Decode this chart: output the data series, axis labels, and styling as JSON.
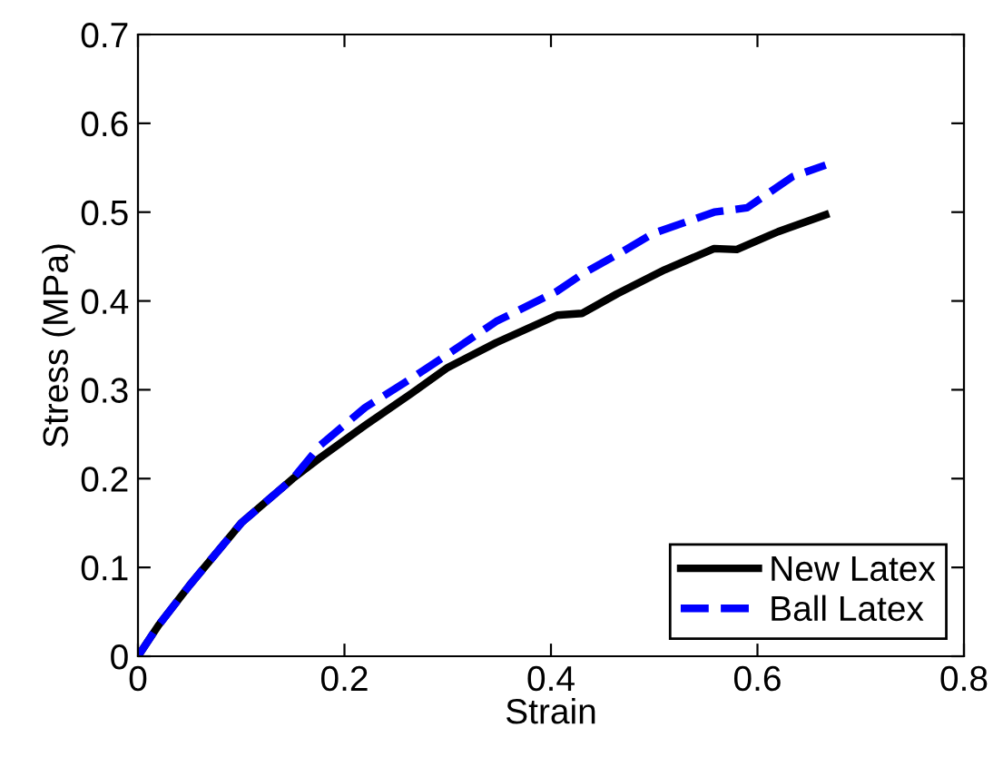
{
  "chart_data": {
    "type": "line",
    "xlabel": "Strain",
    "ylabel": "Stress (MPa)",
    "xlim": [
      0,
      0.8
    ],
    "ylim": [
      0,
      0.7
    ],
    "xticks": [
      0,
      0.2,
      0.4,
      0.6,
      0.8
    ],
    "yticks": [
      0,
      0.1,
      0.2,
      0.3,
      0.4,
      0.5,
      0.6,
      0.7
    ],
    "grid": false,
    "legend": "bottom right",
    "marker": "none",
    "series": [
      {
        "name": "New Latex",
        "color": "#000000",
        "line_style": "solid",
        "x": [
          0,
          0.02,
          0.05,
          0.1,
          0.15,
          0.177,
          0.22,
          0.265,
          0.3,
          0.347,
          0.406,
          0.43,
          0.464,
          0.51,
          0.558,
          0.58,
          0.62,
          0.666
        ],
        "values": [
          0,
          0.035,
          0.08,
          0.15,
          0.2,
          0.224,
          0.26,
          0.296,
          0.325,
          0.353,
          0.384,
          0.386,
          0.408,
          0.435,
          0.459,
          0.458,
          0.478,
          0.497
        ]
      },
      {
        "name": "Ball Latex",
        "color": "#0000ff",
        "line_style": "dashed",
        "x": [
          0,
          0.02,
          0.05,
          0.1,
          0.15,
          0.177,
          0.22,
          0.265,
          0.3,
          0.347,
          0.406,
          0.43,
          0.47,
          0.499,
          0.558,
          0.59,
          0.634,
          0.666
        ],
        "values": [
          0,
          0.035,
          0.08,
          0.15,
          0.2,
          0.238,
          0.28,
          0.313,
          0.34,
          0.377,
          0.411,
          0.43,
          0.456,
          0.476,
          0.5,
          0.505,
          0.54,
          0.553
        ]
      }
    ]
  }
}
